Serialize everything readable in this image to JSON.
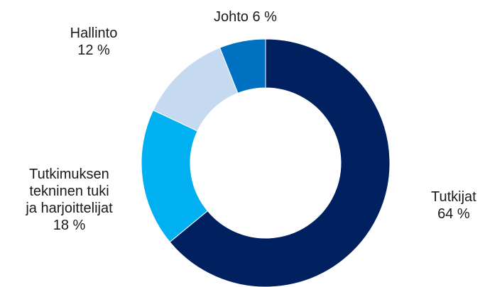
{
  "chart_data": {
    "type": "pie",
    "variant": "donut",
    "title": "",
    "slices": [
      {
        "label": "Tutkijat",
        "value": 64,
        "value_label": "64 %",
        "color": "#002060"
      },
      {
        "label": "Tutkimuksen tekninen tuki ja harjoittelijat",
        "label_lines": [
          "Tutkimuksen",
          "tekninen tuki",
          "ja harjoittelijat"
        ],
        "value": 18,
        "value_label": "18 %",
        "color": "#00B0F0"
      },
      {
        "label": "Hallinto",
        "value": 12,
        "value_label": "12 %",
        "color": "#C5D9F1"
      },
      {
        "label": "Johto",
        "value": 6,
        "value_label": "6 %",
        "color": "#0070C0"
      }
    ],
    "start": "top",
    "direction": "clockwise",
    "legend": "none"
  }
}
